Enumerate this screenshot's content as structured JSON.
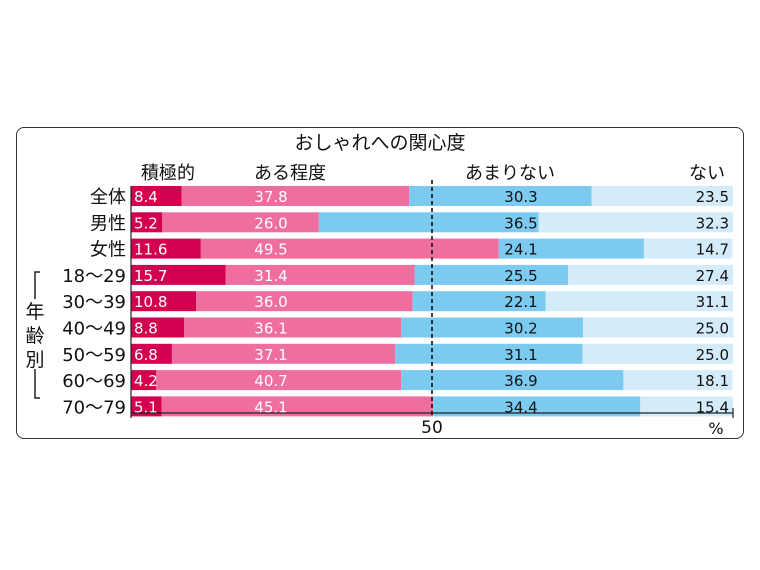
{
  "chart_data": {
    "type": "bar",
    "stacked": "100%",
    "title": "おしゃれへの関心度",
    "series": [
      {
        "name": "積極的",
        "color": "#d3004f"
      },
      {
        "name": "ある程度",
        "color": "#ee6f9f"
      },
      {
        "name": "あまりない",
        "color": "#7ccaf0"
      },
      {
        "name": "ない",
        "color": "#d4ecf9"
      }
    ],
    "categories": [
      "全体",
      "男性",
      "女性",
      "18～29",
      "30～39",
      "40～49",
      "50～59",
      "60～69",
      "70～79"
    ],
    "values": [
      [
        8.4,
        37.8,
        30.3,
        23.5
      ],
      [
        5.2,
        26.0,
        36.5,
        32.3
      ],
      [
        11.6,
        49.5,
        24.1,
        14.7
      ],
      [
        15.7,
        31.4,
        25.5,
        27.4
      ],
      [
        10.8,
        36.0,
        22.1,
        31.1
      ],
      [
        8.8,
        36.1,
        30.2,
        25.0
      ],
      [
        6.8,
        37.1,
        31.1,
        25.0
      ],
      [
        4.2,
        40.7,
        36.9,
        18.1
      ],
      [
        5.1,
        45.1,
        34.4,
        15.4
      ]
    ],
    "value_labels": [
      [
        "8.4",
        "37.8",
        "30.3",
        "23.5"
      ],
      [
        "5.2",
        "26.0",
        "36.5",
        "32.3"
      ],
      [
        "11.6",
        "49.5",
        "24.1",
        "14.7"
      ],
      [
        "15.7",
        "31.4",
        "25.5",
        "27.4"
      ],
      [
        "10.8",
        "36.0",
        "22.1",
        "31.1"
      ],
      [
        "8.8",
        "36.1",
        "30.2",
        "25.0"
      ],
      [
        "6.8",
        "37.1",
        "31.1",
        "25.0"
      ],
      [
        "4.2",
        "40.7",
        "36.9",
        "18.1"
      ],
      [
        "5.1",
        "45.1",
        "34.4",
        "15.4"
      ]
    ],
    "group_label": "年齢別",
    "age_group_rows": [
      3,
      8
    ],
    "xlim": [
      0,
      100
    ],
    "reference_line": 50,
    "x_tick_label": "50",
    "unit": "%"
  }
}
